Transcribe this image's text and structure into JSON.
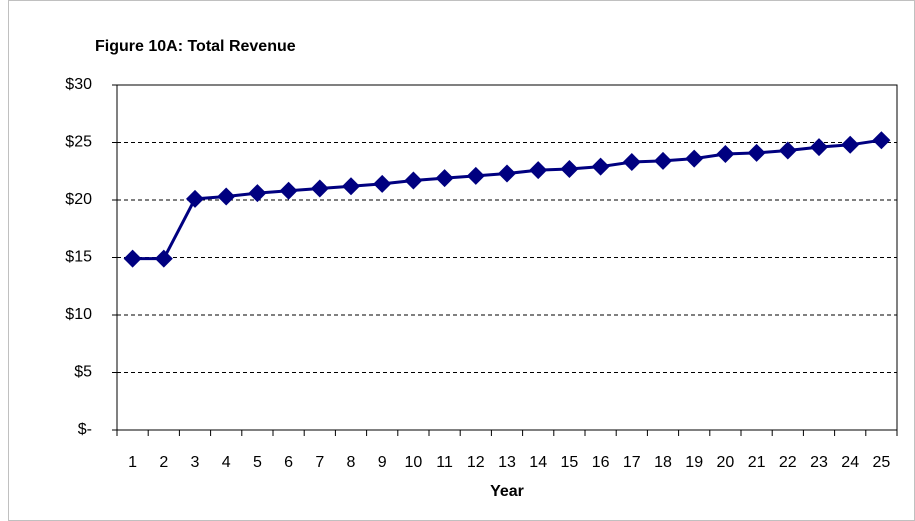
{
  "chart_data": {
    "type": "line",
    "title": "Figure 10A: Total Revenue",
    "x_label": "Year",
    "categories": [
      "1",
      "2",
      "3",
      "4",
      "5",
      "6",
      "7",
      "8",
      "9",
      "10",
      "11",
      "12",
      "13",
      "14",
      "15",
      "16",
      "17",
      "18",
      "19",
      "20",
      "21",
      "22",
      "23",
      "24",
      "25"
    ],
    "series": [
      {
        "name": "Total Revenue",
        "color": "#000080",
        "values": [
          14.9,
          14.9,
          20.1,
          20.3,
          20.6,
          20.8,
          21.0,
          21.2,
          21.4,
          21.7,
          21.9,
          22.1,
          22.3,
          22.6,
          22.7,
          22.9,
          23.3,
          23.4,
          23.6,
          24.0,
          24.1,
          24.3,
          24.6,
          24.8,
          25.2
        ]
      }
    ],
    "ylim": [
      0,
      30
    ],
    "yticks": [
      {
        "value": 0,
        "label": "$-"
      },
      {
        "value": 5,
        "label": "$5"
      },
      {
        "value": 10,
        "label": "$10"
      },
      {
        "value": 15,
        "label": "$15"
      },
      {
        "value": 20,
        "label": "$20"
      },
      {
        "value": 25,
        "label": "$25"
      },
      {
        "value": 30,
        "label": "$30"
      }
    ],
    "grid": true,
    "legend": false
  }
}
